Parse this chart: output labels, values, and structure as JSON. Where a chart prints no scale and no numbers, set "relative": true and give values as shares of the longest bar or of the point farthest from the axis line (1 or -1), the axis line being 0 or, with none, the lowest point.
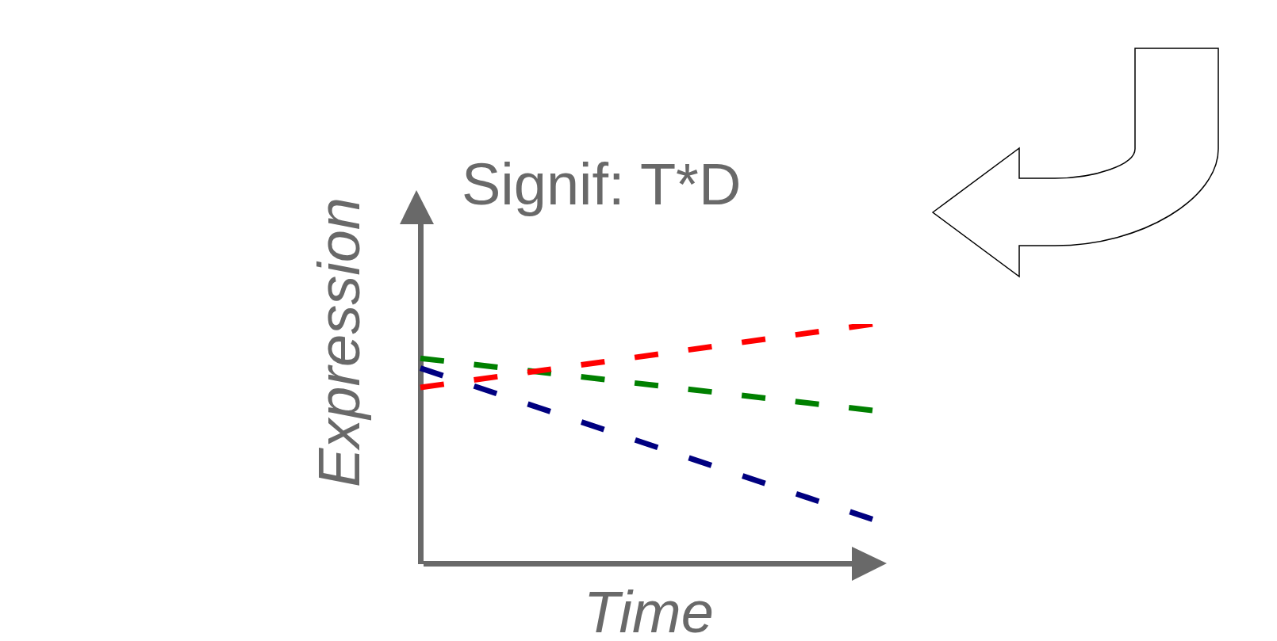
{
  "chart_data": {
    "type": "line",
    "title": "Signif: T*D",
    "xlabel": "Time",
    "ylabel": "Expression",
    "relative": true,
    "categories": [
      null,
      null
    ],
    "line_style": "dashed",
    "marker": "none",
    "grid": false,
    "legend": false,
    "series": [
      {
        "color": "#ff0000",
        "values": [
          0.735,
          1
        ]
      },
      {
        "color": "#008000",
        "values": [
          0.857,
          0.639
        ]
      },
      {
        "color": "#000080",
        "values": [
          0.816,
          0.184
        ]
      }
    ]
  }
}
